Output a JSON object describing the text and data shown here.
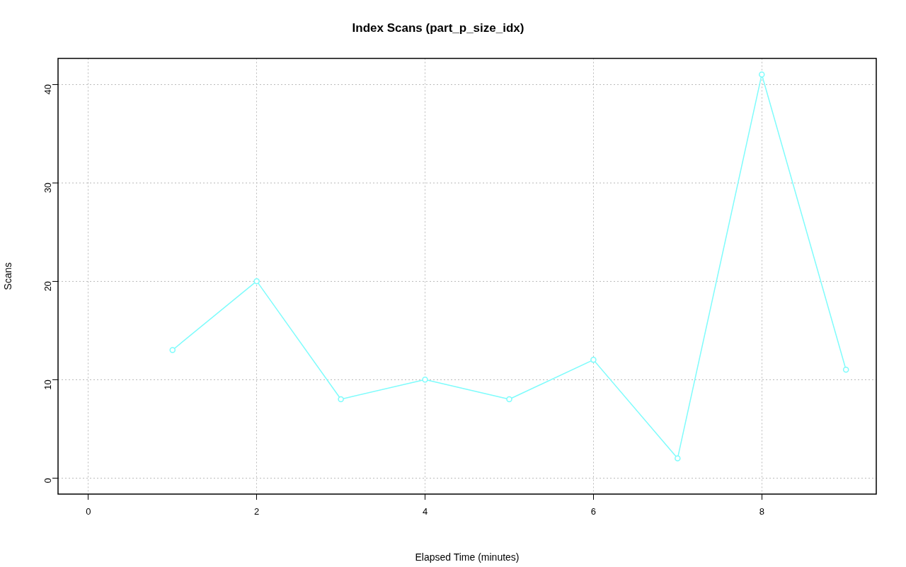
{
  "chart_data": {
    "type": "line",
    "title": "Index Scans (part_p_size_idx)",
    "xlabel": "Elapsed Time (minutes)",
    "ylabel": "Scans",
    "x": [
      1,
      2,
      3,
      4,
      5,
      6,
      7,
      8,
      9
    ],
    "series": [
      {
        "color": "#7ffcfc",
        "values": [
          13,
          20,
          8,
          10,
          8,
          12,
          2,
          41,
          11
        ]
      }
    ],
    "xlim": [
      -0.36,
      9.36
    ],
    "ylim": [
      -1.64,
      42.64
    ],
    "xticks": [
      0,
      2,
      4,
      6,
      8
    ],
    "yticks": [
      0,
      10,
      20,
      30,
      40
    ],
    "grid": true,
    "marker": "circle",
    "line_style": "solid"
  }
}
